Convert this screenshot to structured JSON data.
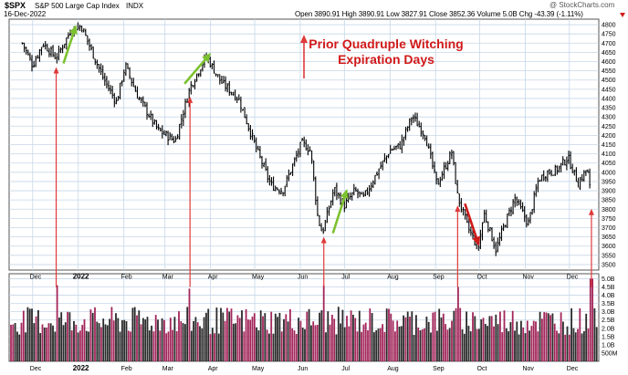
{
  "header": {
    "symbol": "$SPX",
    "name": "S&P 500 Large Cap Index",
    "exchange": "INDX",
    "date": "16-Dec-2022",
    "quote": "Open 3890.91  High 3890.91  Low 3827.91  Close 3852.36  Volume 5.0B  Chg -43.39 (-1.11%)",
    "watermark": "@ StockCharts.com"
  },
  "annotation": {
    "line1": "Prior Quadruple Witching",
    "line2": "Expiration Days"
  },
  "colors": {
    "grid": "#c6d7e8",
    "frame": "#555555",
    "price": "#000000",
    "up_arrow": "#7cc12f",
    "down_arrow": "#d11a1a",
    "marker": "#e0393a",
    "volume_up": "#a3265a",
    "volume_down": "#2a2a2a"
  },
  "chart_data": [
    {
      "type": "ohlc",
      "title": "$SPX S&P 500 Large Cap Index INDX",
      "x_ticks": [
        "Dec",
        "2022",
        "Feb",
        "Mar",
        "Apr",
        "May",
        "Jun",
        "Jul",
        "Aug",
        "Sep",
        "Oct",
        "Nov",
        "Dec"
      ],
      "y_ticks": [
        "3500",
        "3550",
        "3600",
        "3650",
        "3700",
        "3750",
        "3800",
        "3850",
        "3900",
        "3950",
        "4000",
        "4050",
        "4100",
        "4150",
        "4200",
        "4250",
        "4300",
        "4350",
        "4400",
        "4450",
        "4500",
        "4550",
        "4600",
        "4650",
        "4700",
        "4750",
        "4800"
      ],
      "ylim": [
        3470,
        4830
      ],
      "grid": true,
      "series": [
        {
          "x": [
            "2021-11-24",
            "2021-12-01",
            "2021-12-08",
            "2021-12-17",
            "2021-12-27",
            "2022-01-03",
            "2022-01-10",
            "2022-01-18",
            "2022-01-27",
            "2022-02-02",
            "2022-02-10",
            "2022-02-24",
            "2022-03-08",
            "2022-03-18",
            "2022-03-29",
            "2022-04-08",
            "2022-04-20",
            "2022-05-02",
            "2022-05-12",
            "2022-05-20",
            "2022-06-02",
            "2022-06-08",
            "2022-06-13",
            "2022-06-16",
            "2022-06-24",
            "2022-07-01",
            "2022-07-08",
            "2022-07-14",
            "2022-07-22",
            "2022-08-01",
            "2022-08-08",
            "2022-08-16",
            "2022-08-25",
            "2022-09-02",
            "2022-09-12",
            "2022-09-16",
            "2022-09-23",
            "2022-09-30",
            "2022-10-04",
            "2022-10-12",
            "2022-10-18",
            "2022-10-25",
            "2022-11-03",
            "2022-11-10",
            "2022-11-16",
            "2022-11-22",
            "2022-11-30",
            "2022-12-07",
            "2022-12-13",
            "2022-12-16"
          ],
          "y": [
            4700,
            4580,
            4700,
            4620,
            4770,
            4795,
            4660,
            4510,
            4380,
            4580,
            4420,
            4230,
            4170,
            4460,
            4630,
            4490,
            4400,
            4130,
            3930,
            3900,
            4160,
            4120,
            3750,
            3670,
            3910,
            3820,
            3900,
            3860,
            3980,
            4120,
            4145,
            4305,
            4200,
            3930,
            4110,
            3870,
            3700,
            3590,
            3780,
            3580,
            3720,
            3860,
            3720,
            3960,
            4000,
            4010,
            4080,
            3940,
            4020,
            3852
          ],
          "name": ""
        }
      ]
    },
    {
      "type": "bar",
      "title": "Volume",
      "x_ticks": [
        "Dec",
        "2022",
        "Feb",
        "Mar",
        "Apr",
        "May",
        "Jun",
        "Jul",
        "Aug",
        "Sep",
        "Oct",
        "Nov",
        "Dec"
      ],
      "y_ticks": [
        "500M",
        "1.0B",
        "1.5B",
        "2.0B",
        "2.5B",
        "3.0B",
        "3.5B",
        "4.0B",
        "4.5B",
        "5.0B"
      ],
      "ylim": [
        0,
        5.3
      ],
      "unit": "B",
      "spikes": [
        {
          "x": "2021-12-17",
          "value": 4.6
        },
        {
          "x": "2022-03-18",
          "value": 4.4
        },
        {
          "x": "2022-06-17",
          "value": 4.6
        },
        {
          "x": "2022-09-16",
          "value": 4.5
        },
        {
          "x": "2022-12-16",
          "value": 5.0
        }
      ],
      "typical_range": [
        1.6,
        3.3
      ]
    }
  ],
  "witching_days": [
    "2021-12-17",
    "2022-03-18",
    "2022-06-17",
    "2022-09-16",
    "2022-12-16"
  ]
}
